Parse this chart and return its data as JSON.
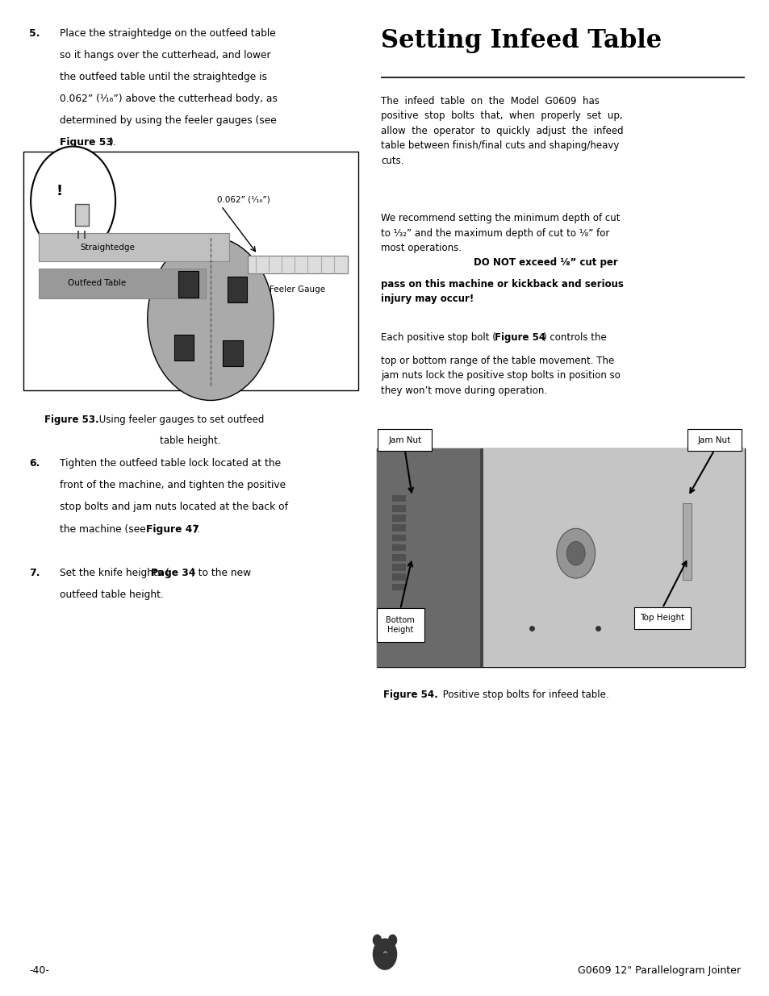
{
  "bg_color": "#ffffff",
  "title": "Setting Infeed Table",
  "footer_left": "-40-",
  "footer_right": "G0609 12\" Parallelogram Jointer"
}
